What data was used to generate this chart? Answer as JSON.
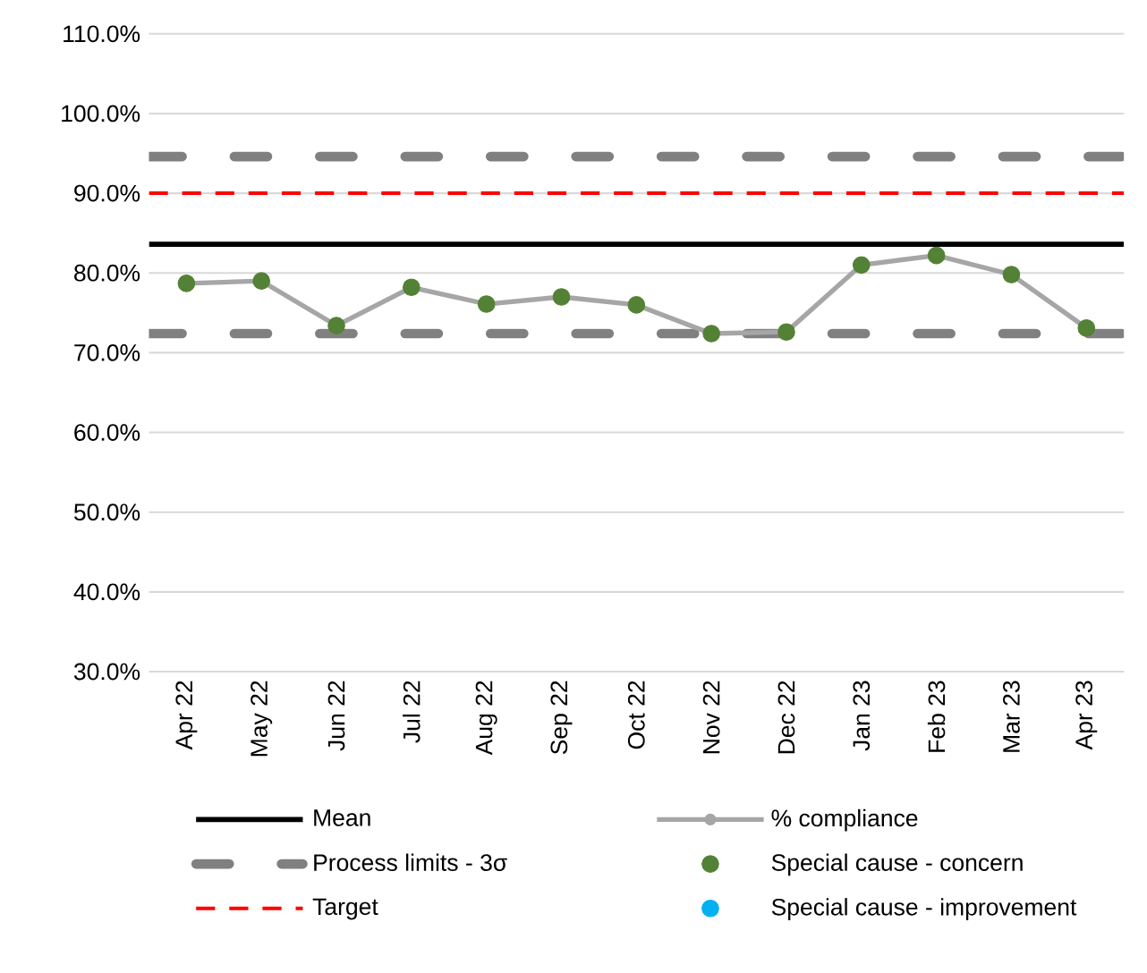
{
  "chart_data": {
    "type": "line",
    "categories": [
      "Apr 22",
      "May 22",
      "Jun 22",
      "Jul 22",
      "Aug 22",
      "Sep 22",
      "Oct 22",
      "Nov 22",
      "Dec 22",
      "Jan 23",
      "Feb 23",
      "Mar 23",
      "Apr 23"
    ],
    "series": [
      {
        "name": "% compliance",
        "color": "#a6a6a6",
        "marker": "circle",
        "values": [
          78.7,
          79.0,
          73.4,
          78.2,
          76.1,
          77.0,
          76.0,
          72.4,
          72.6,
          81.0,
          82.2,
          79.8,
          73.1
        ]
      },
      {
        "name": "Special cause - concern",
        "type": "scatter",
        "color": "#538135",
        "marker": "circle",
        "values": [
          78.7,
          79.0,
          73.4,
          78.2,
          76.1,
          77.0,
          76.0,
          72.4,
          72.6,
          81.0,
          82.2,
          79.8,
          73.1
        ]
      },
      {
        "name": "Special cause  - improvement",
        "type": "scatter",
        "color": "#00b0f0",
        "marker": "circle",
        "values": [
          null,
          null,
          null,
          null,
          null,
          null,
          null,
          null,
          null,
          null,
          null,
          null,
          null
        ]
      }
    ],
    "ref_lines": [
      {
        "axis": "y",
        "value": 83.6,
        "label": "Mean",
        "color": "#000000",
        "line_style": "solid"
      },
      {
        "axis": "y",
        "value": 94.6,
        "label": "Process limits - 3σ",
        "color": "#808080",
        "line_style": "dashed"
      },
      {
        "axis": "y",
        "value": 72.4,
        "color": "#808080",
        "line_style": "dashed"
      },
      {
        "axis": "y",
        "value": 90,
        "label": "Target",
        "color": "#ff0000",
        "line_style": "dashed"
      }
    ],
    "ylim": [
      30,
      110
    ],
    "yticks": [
      {
        "value": 30,
        "label": "30.0%"
      },
      {
        "value": 40,
        "label": "40.0%"
      },
      {
        "value": 50,
        "label": "50.0%"
      },
      {
        "value": 60,
        "label": "60.0%"
      },
      {
        "value": 70,
        "label": "70.0%"
      },
      {
        "value": 80,
        "label": "80.0%"
      },
      {
        "value": 90,
        "label": "90.0%"
      },
      {
        "value": 100,
        "label": "100.0%"
      },
      {
        "value": 110,
        "label": "110.0%"
      }
    ],
    "grid": "y",
    "legend": "bottom"
  }
}
